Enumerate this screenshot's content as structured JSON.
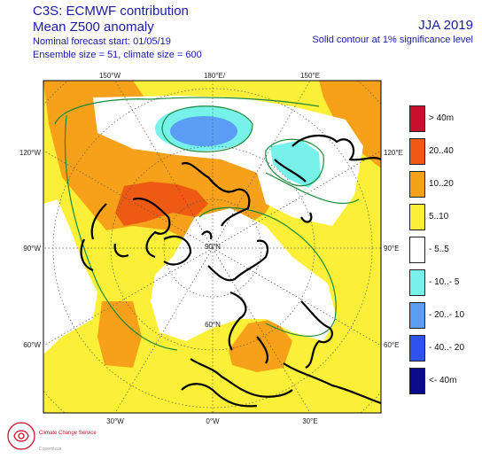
{
  "header": {
    "line1": "C3S: ECMWF contribution",
    "line2": "Mean Z500 anomaly",
    "line3": "Nominal forecast start: 01/05/19",
    "line4": "Ensemble size = 51, climate size = 600",
    "season": "JJA 2019",
    "note": "Solid contour at 1% significance level"
  },
  "map": {
    "ticks": {
      "top": [
        "150°W",
        "180°E/",
        "150°E"
      ],
      "left": [
        "120°W",
        "90°W",
        "60°W"
      ],
      "right": [
        "120°E",
        "90°E",
        "60°E"
      ],
      "bottom": [
        "30°W",
        "0°W",
        "30°E"
      ],
      "center": [
        "90°N",
        "60°N"
      ]
    }
  },
  "legend": {
    "items": [
      {
        "label": "> 40m",
        "color": "#c8102e"
      },
      {
        "label": "20..40",
        "color": "#ee5a12"
      },
      {
        "label": "10..20",
        "color": "#f7a11a"
      },
      {
        "label": "5..10",
        "color": "#fbf037"
      },
      {
        "label": "- 5..5",
        "color": "#ffffff"
      },
      {
        "label": "- 10..- 5",
        "color": "#76f2ea"
      },
      {
        "label": "- 20..- 10",
        "color": "#5b9cf5"
      },
      {
        "label": "- 40..- 20",
        "color": "#2f52ec"
      },
      {
        "label": "<- 40m",
        "color": "#0a0a8c"
      }
    ]
  },
  "logo": {
    "name": "Climate Change Service",
    "brand": "Copernicus"
  }
}
